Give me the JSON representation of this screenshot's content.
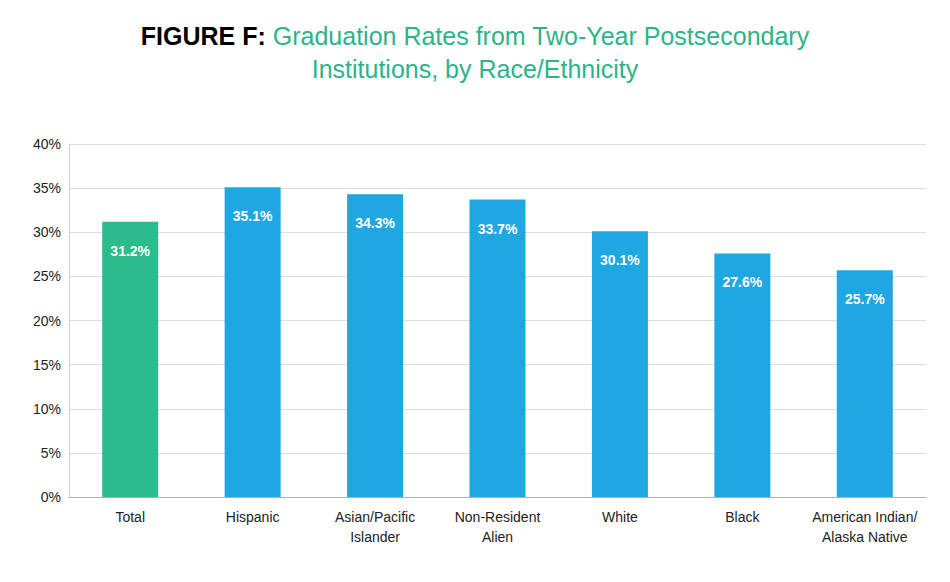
{
  "chart_data": {
    "type": "bar",
    "title": "FIGURE F: Graduation Rates from Two-Year Postsecondary Institutions, by Race/Ethnicity",
    "categories": [
      "Total",
      "Hispanic",
      "Asian/Pacific\nIslander",
      "Non-Resident\nAlien",
      "White",
      "Black",
      "American Indian/\nAlaska Native"
    ],
    "values": [
      31.2,
      35.1,
      34.3,
      33.7,
      30.1,
      27.6,
      25.7
    ],
    "value_labels": [
      "31.2%",
      "35.1%",
      "34.3%",
      "33.7%",
      "30.1%",
      "27.6%",
      "25.7%"
    ],
    "colors": [
      "#2dba8c",
      "#1ea7e1",
      "#1ea7e1",
      "#1ea7e1",
      "#1ea7e1",
      "#1ea7e1",
      "#1ea7e1"
    ],
    "ylim": [
      0,
      40
    ],
    "yticks": [
      {
        "value": 0,
        "label": "0%"
      },
      {
        "value": 5,
        "label": "5%"
      },
      {
        "value": 10,
        "label": "10%"
      },
      {
        "value": 15,
        "label": "15%"
      },
      {
        "value": 20,
        "label": "20%"
      },
      {
        "value": 25,
        "label": "25%"
      },
      {
        "value": 30,
        "label": "30%"
      },
      {
        "value": 35,
        "label": "35%"
      },
      {
        "value": 40,
        "label": "40%"
      }
    ],
    "grid": true,
    "data_labels": true
  }
}
